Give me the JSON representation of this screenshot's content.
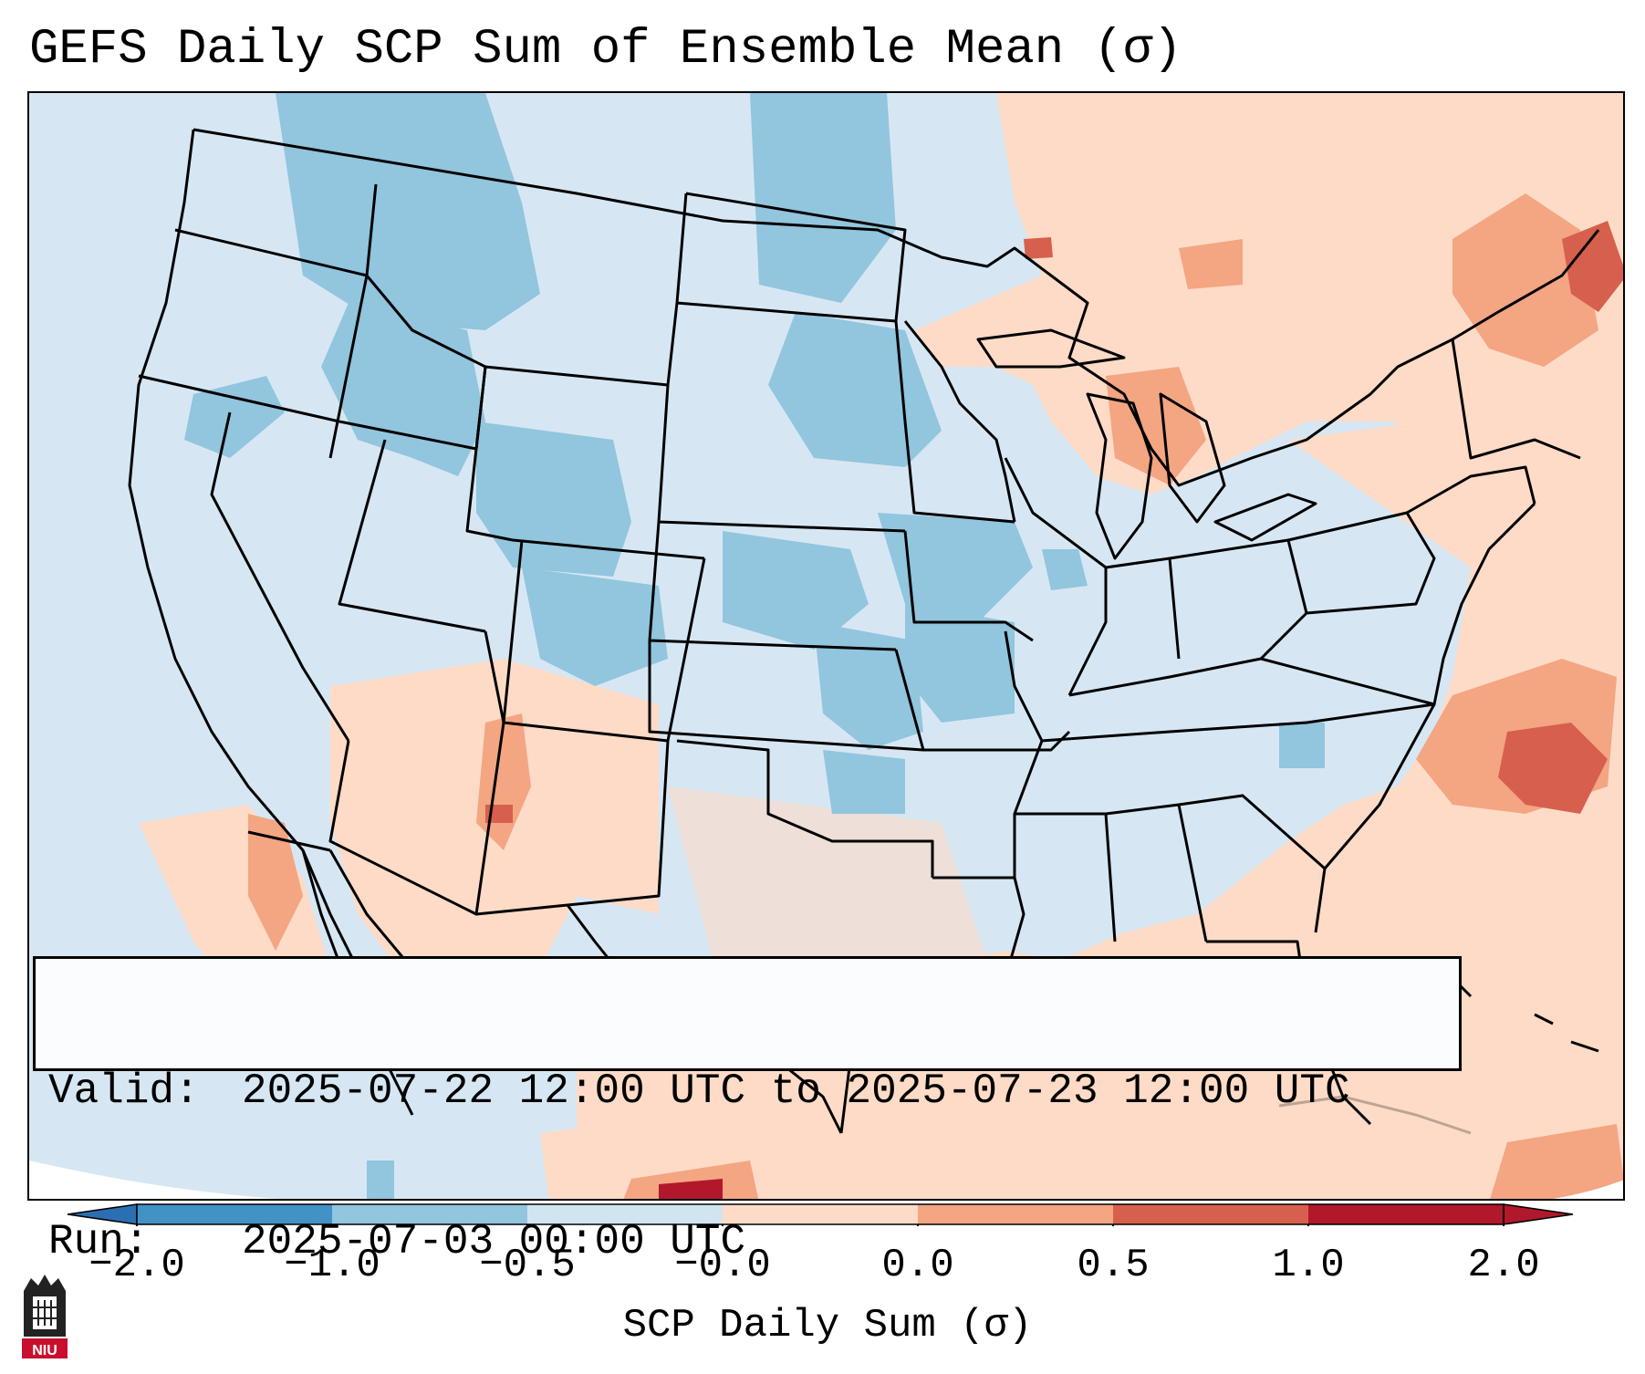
{
  "title": "GEFS Daily SCP Sum of Ensemble Mean (σ)",
  "info": {
    "valid_label": "Valid:",
    "valid_value": "2025-07-22 12:00 UTC to 2025-07-23 12:00 UTC",
    "run_label": "Run:",
    "run_value": "2025-07-03 00:00 UTC"
  },
  "colorbar": {
    "label": "SCP Daily Sum (σ)",
    "ticks": [
      "−2.0",
      "−1.0",
      "−0.5",
      "−0.0",
      "0.0",
      "0.5",
      "1.0",
      "2.0"
    ],
    "colors": [
      "#2b6fb3",
      "#4292c6",
      "#92c5de",
      "#d1e5f0",
      "#fddbc7",
      "#f4a582",
      "#d6604d",
      "#b2182b"
    ]
  },
  "logo_text": "NIU"
}
